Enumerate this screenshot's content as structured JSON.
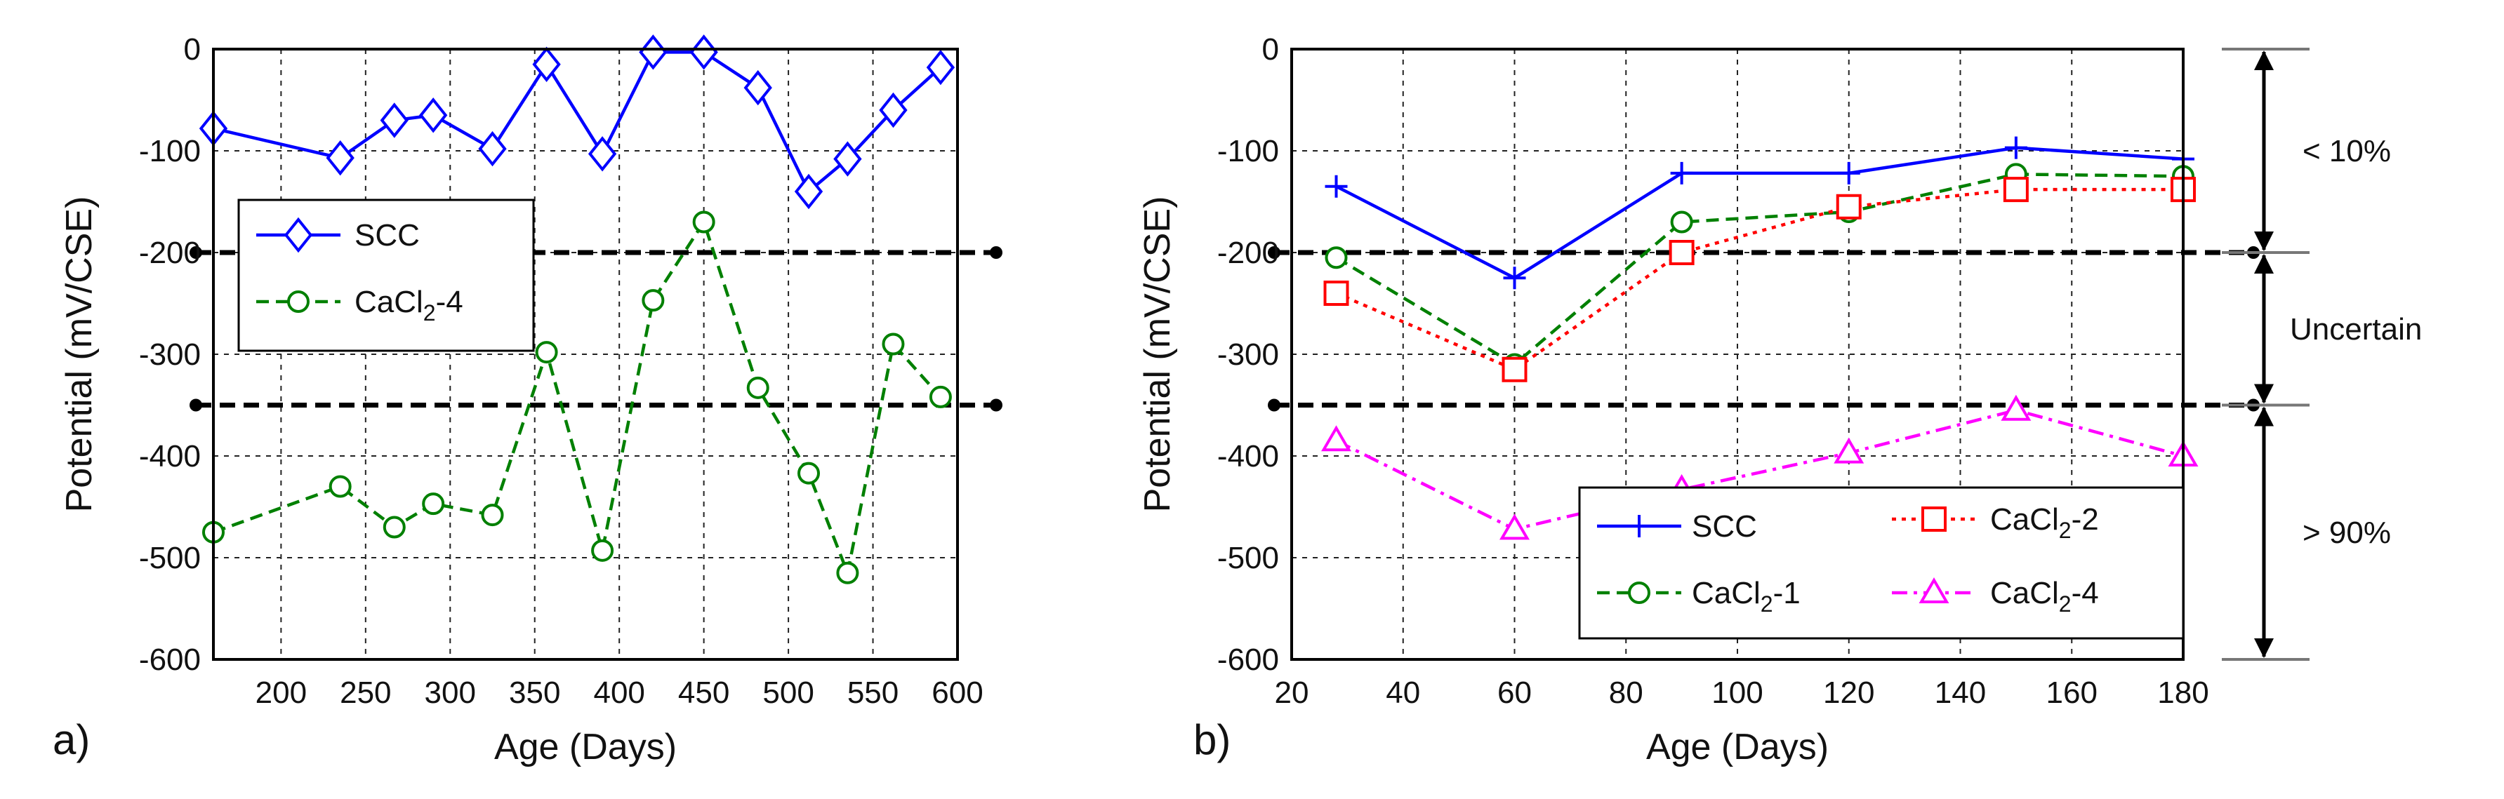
{
  "panels": [
    {
      "letter": "a)",
      "xlabel": "Age (Days)",
      "ylabel": "Potential (mV/CSE)",
      "xlim": [
        160,
        600
      ],
      "ylim": [
        -600,
        0
      ],
      "xticks": [
        200,
        250,
        300,
        350,
        400,
        450,
        500,
        550,
        600
      ],
      "yticks": [
        0,
        -100,
        -200,
        -300,
        -400,
        -500,
        -600
      ]
    },
    {
      "letter": "b)",
      "xlabel": "Age (Days)",
      "ylabel": "Potential (mV/CSE)",
      "xlim": [
        20,
        180
      ],
      "ylim": [
        -600,
        0
      ],
      "xticks": [
        20,
        40,
        60,
        80,
        100,
        120,
        140,
        160,
        180
      ],
      "yticks": [
        0,
        -100,
        -200,
        -300,
        -400,
        -500,
        -600
      ]
    }
  ],
  "chart_data": [
    {
      "type": "line",
      "panel": "a)",
      "xlabel": "Age (Days)",
      "ylabel": "Potential (mV/CSE)",
      "xlim": [
        160,
        600
      ],
      "ylim": [
        -600,
        0
      ],
      "grid": true,
      "legend": "upper-left",
      "thresholds": [
        -200,
        -350
      ],
      "series": [
        {
          "name": "SCC",
          "color": "#0000ff",
          "marker": "diamond",
          "dash": "solid",
          "x": [
            160,
            235,
            267,
            290,
            325,
            357,
            390,
            420,
            450,
            482,
            512,
            535,
            562,
            590
          ],
          "y": [
            -78,
            -107,
            -70,
            -65,
            -98,
            -15,
            -103,
            -3,
            -3,
            -38,
            -140,
            -108,
            -60,
            -18
          ]
        },
        {
          "name": "CaCl2-4",
          "color": "#008000",
          "marker": "circle",
          "dash": "dashed",
          "x": [
            160,
            235,
            267,
            290,
            325,
            357,
            390,
            420,
            450,
            482,
            512,
            535,
            562,
            590
          ],
          "y": [
            -475,
            -430,
            -470,
            -447,
            -458,
            -298,
            -493,
            -247,
            -170,
            -333,
            -417,
            -515,
            -290,
            -342
          ]
        }
      ]
    },
    {
      "type": "line",
      "panel": "b)",
      "xlabel": "Age (Days)",
      "ylabel": "Potential (mV/CSE)",
      "xlim": [
        20,
        180
      ],
      "ylim": [
        -600,
        0
      ],
      "grid": true,
      "legend": "bottom-right",
      "thresholds": [
        -200,
        -350
      ],
      "series": [
        {
          "name": "SCC",
          "color": "#0000ff",
          "marker": "plus",
          "dash": "solid",
          "x": [
            28,
            60,
            90,
            120,
            150,
            180
          ],
          "y": [
            -135,
            -225,
            -122,
            -122,
            -97,
            -108
          ]
        },
        {
          "name": "CaCl2-1",
          "color": "#008000",
          "marker": "circle",
          "dash": "dashed",
          "x": [
            28,
            60,
            90,
            120,
            150,
            180
          ],
          "y": [
            -205,
            -310,
            -170,
            -160,
            -123,
            -125
          ]
        },
        {
          "name": "CaCl2-2",
          "color": "#ff0000",
          "marker": "square",
          "dash": "dotted",
          "x": [
            28,
            60,
            90,
            120,
            150,
            180
          ],
          "y": [
            -240,
            -315,
            -200,
            -155,
            -138,
            -138
          ]
        },
        {
          "name": "CaCl2-4",
          "color": "#ff00ff",
          "marker": "triangle",
          "dash": "dashdot",
          "x": [
            28,
            60,
            90,
            120,
            150,
            180
          ],
          "y": [
            -385,
            -472,
            -433,
            -397,
            -355,
            -400
          ]
        }
      ]
    }
  ],
  "legends": {
    "a": [
      {
        "base": "SCC",
        "sub": "",
        "suffix": ""
      },
      {
        "base": "CaCl",
        "sub": "2",
        "suffix": "-4"
      }
    ],
    "b": [
      {
        "base": "SCC",
        "sub": "",
        "suffix": ""
      },
      {
        "base": "CaCl",
        "sub": "2",
        "suffix": "-2"
      },
      {
        "base": "CaCl",
        "sub": "2",
        "suffix": "-1"
      },
      {
        "base": "CaCl",
        "sub": "2",
        "suffix": "-4"
      }
    ]
  },
  "annotations": {
    "zone_high": "< 10%",
    "zone_mid": "Uncertain",
    "zone_low": "> 90%"
  }
}
